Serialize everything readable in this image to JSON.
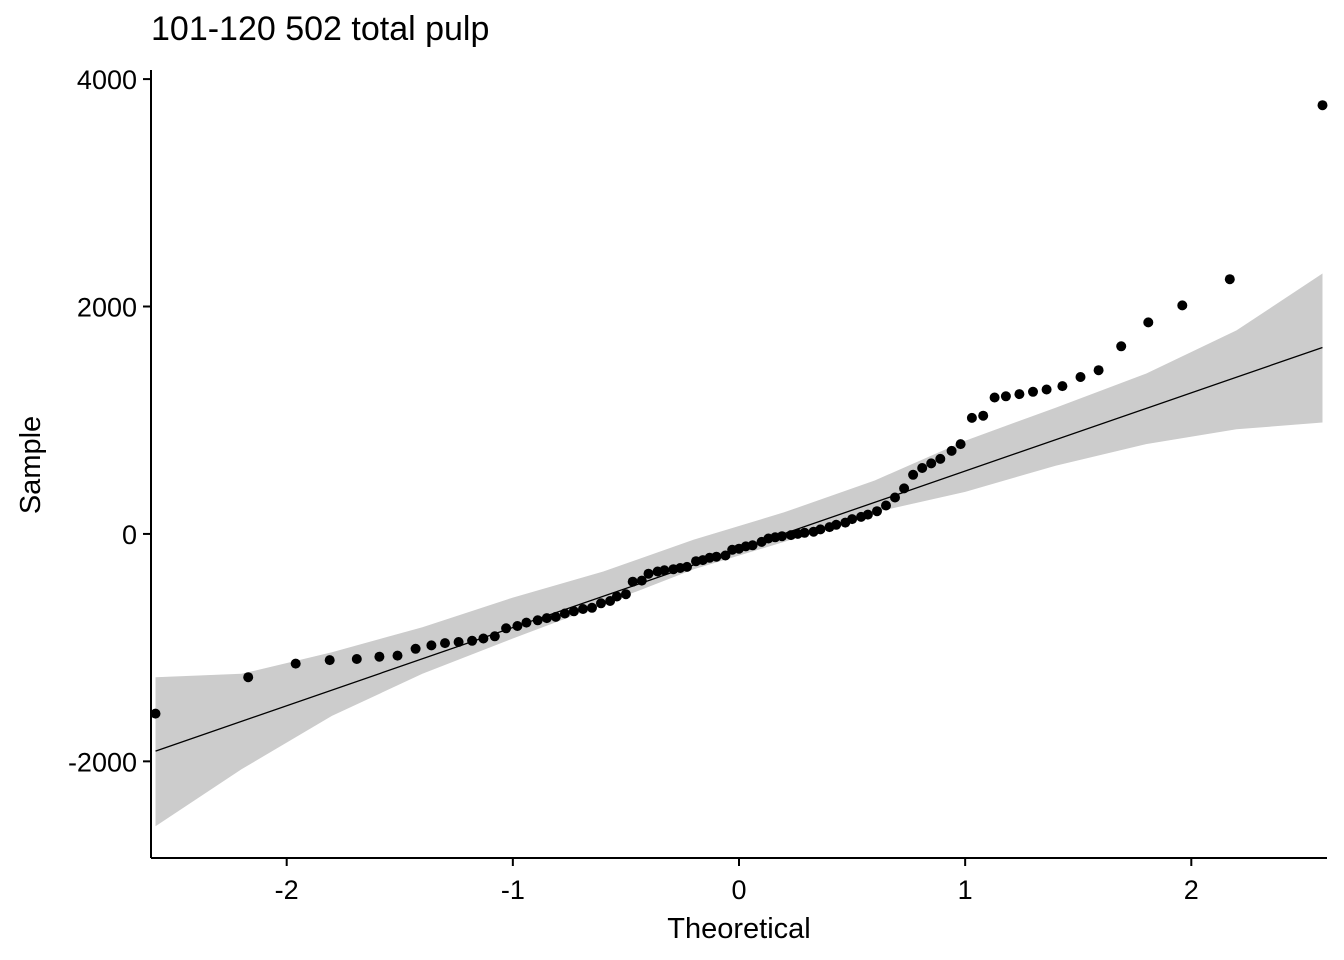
{
  "chart_data": {
    "type": "scatter",
    "title": "101-120 502 total pulp",
    "xlabel": "Theoretical",
    "ylabel": "Sample",
    "xlim": [
      -2.6,
      2.6
    ],
    "ylim": [
      -2850,
      4080
    ],
    "xticks": [
      -2,
      -1,
      0,
      1,
      2
    ],
    "xtick_labels": [
      "-2",
      "-1",
      "0",
      "1",
      "2"
    ],
    "yticks": [
      -2000,
      0,
      2000,
      4000
    ],
    "ytick_labels": [
      "-2000",
      "0",
      "2000",
      "4000"
    ],
    "grid": false,
    "colors": {
      "points": "#000000",
      "line": "#000000",
      "band": "#cccccc"
    },
    "reference_line": {
      "x": [
        -2.58,
        2.58
      ],
      "y": [
        -1910,
        1640
      ]
    },
    "confidence_band": {
      "x": [
        -2.58,
        -2.2,
        -1.8,
        -1.4,
        -1.0,
        -0.6,
        -0.2,
        0.2,
        0.6,
        1.0,
        1.4,
        1.8,
        2.2,
        2.58
      ],
      "upper": [
        -1260,
        -1230,
        -1040,
        -820,
        -560,
        -330,
        -50,
        190,
        470,
        820,
        1110,
        1410,
        1790,
        2290
      ],
      "lower": [
        -2570,
        -2070,
        -1600,
        -1230,
        -920,
        -620,
        -310,
        -70,
        190,
        370,
        600,
        790,
        920,
        980
      ]
    },
    "points": [
      [
        -2.58,
        -1580
      ],
      [
        -2.17,
        -1260
      ],
      [
        -1.96,
        -1140
      ],
      [
        -1.81,
        -1110
      ],
      [
        -1.69,
        -1100
      ],
      [
        -1.59,
        -1080
      ],
      [
        -1.51,
        -1070
      ],
      [
        -1.43,
        -1010
      ],
      [
        -1.36,
        -980
      ],
      [
        -1.3,
        -960
      ],
      [
        -1.24,
        -950
      ],
      [
        -1.18,
        -940
      ],
      [
        -1.13,
        -920
      ],
      [
        -1.08,
        -900
      ],
      [
        -1.03,
        -830
      ],
      [
        -0.98,
        -810
      ],
      [
        -0.94,
        -780
      ],
      [
        -0.89,
        -760
      ],
      [
        -0.85,
        -740
      ],
      [
        -0.81,
        -730
      ],
      [
        -0.77,
        -700
      ],
      [
        -0.73,
        -680
      ],
      [
        -0.69,
        -660
      ],
      [
        -0.65,
        -650
      ],
      [
        -0.61,
        -610
      ],
      [
        -0.57,
        -590
      ],
      [
        -0.54,
        -550
      ],
      [
        -0.5,
        -530
      ],
      [
        -0.47,
        -420
      ],
      [
        -0.43,
        -410
      ],
      [
        -0.4,
        -350
      ],
      [
        -0.36,
        -330
      ],
      [
        -0.33,
        -320
      ],
      [
        -0.29,
        -310
      ],
      [
        -0.26,
        -300
      ],
      [
        -0.23,
        -290
      ],
      [
        -0.19,
        -240
      ],
      [
        -0.16,
        -230
      ],
      [
        -0.13,
        -210
      ],
      [
        -0.1,
        -200
      ],
      [
        -0.06,
        -190
      ],
      [
        -0.03,
        -140
      ],
      [
        0.0,
        -130
      ],
      [
        0.03,
        -110
      ],
      [
        0.06,
        -100
      ],
      [
        0.1,
        -70
      ],
      [
        0.13,
        -40
      ],
      [
        0.16,
        -30
      ],
      [
        0.19,
        -20
      ],
      [
        0.23,
        -10
      ],
      [
        0.26,
        0
      ],
      [
        0.29,
        10
      ],
      [
        0.33,
        20
      ],
      [
        0.36,
        40
      ],
      [
        0.4,
        60
      ],
      [
        0.43,
        80
      ],
      [
        0.47,
        100
      ],
      [
        0.5,
        130
      ],
      [
        0.54,
        150
      ],
      [
        0.57,
        170
      ],
      [
        0.61,
        200
      ],
      [
        0.65,
        250
      ],
      [
        0.69,
        320
      ],
      [
        0.73,
        400
      ],
      [
        0.77,
        520
      ],
      [
        0.81,
        580
      ],
      [
        0.85,
        620
      ],
      [
        0.89,
        660
      ],
      [
        0.94,
        730
      ],
      [
        0.98,
        790
      ],
      [
        1.03,
        1020
      ],
      [
        1.08,
        1040
      ],
      [
        1.13,
        1200
      ],
      [
        1.18,
        1210
      ],
      [
        1.24,
        1230
      ],
      [
        1.3,
        1250
      ],
      [
        1.36,
        1270
      ],
      [
        1.43,
        1300
      ],
      [
        1.51,
        1380
      ],
      [
        1.59,
        1440
      ],
      [
        1.69,
        1650
      ],
      [
        1.81,
        1860
      ],
      [
        1.96,
        2010
      ],
      [
        2.17,
        2240
      ],
      [
        2.58,
        3770
      ]
    ]
  }
}
